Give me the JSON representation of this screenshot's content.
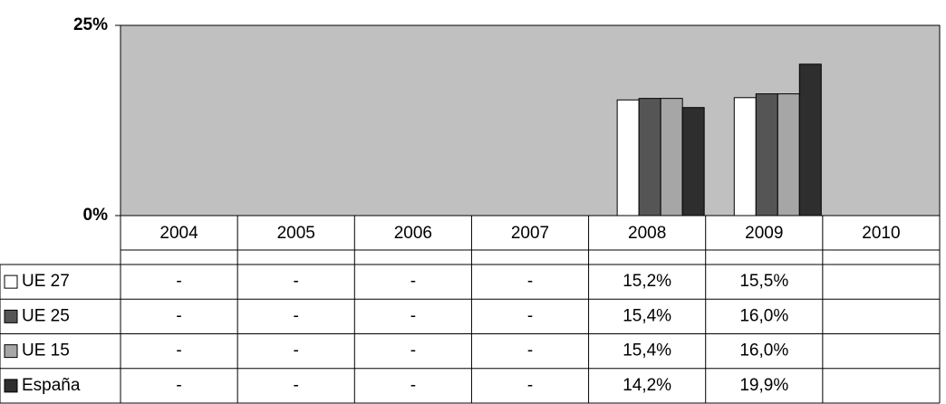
{
  "chart_data": {
    "type": "bar",
    "categories": [
      "2004",
      "2005",
      "2006",
      "2007",
      "2008",
      "2009",
      "2010"
    ],
    "series": [
      {
        "name": "UE 27",
        "color": "#ffffff",
        "values": [
          null,
          null,
          null,
          null,
          15.2,
          15.5,
          null
        ],
        "value_labels": [
          "-",
          "-",
          "-",
          "-",
          "15,2%",
          "15,5%",
          null
        ]
      },
      {
        "name": "UE 25",
        "color": "#555555",
        "values": [
          null,
          null,
          null,
          null,
          15.4,
          16.0,
          null
        ],
        "value_labels": [
          "-",
          "-",
          "-",
          "-",
          "15,4%",
          "16,0%",
          null
        ]
      },
      {
        "name": "UE 15",
        "color": "#a6a6a6",
        "values": [
          null,
          null,
          null,
          null,
          15.4,
          16.0,
          null
        ],
        "value_labels": [
          "-",
          "-",
          "-",
          "-",
          "15,4%",
          "16,0%",
          null
        ]
      },
      {
        "name": "España",
        "color": "#2e2e2e",
        "values": [
          null,
          null,
          null,
          null,
          14.2,
          19.9,
          null
        ],
        "value_labels": [
          "-",
          "-",
          "-",
          "-",
          "14,2%",
          "19,9%",
          null
        ]
      }
    ],
    "ylim": [
      0,
      25
    ],
    "yticks": [
      {
        "value": 0,
        "label": "0%"
      },
      {
        "value": 25,
        "label": "25%"
      }
    ],
    "plot_background": "#c0c0c0"
  }
}
